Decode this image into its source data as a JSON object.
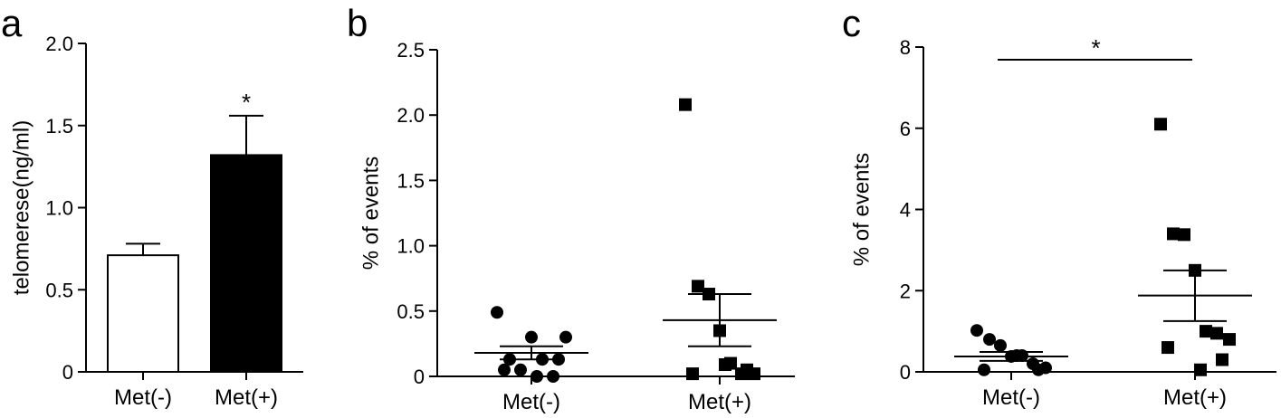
{
  "chart_data": [
    {
      "panel": "a",
      "type": "bar",
      "categories": [
        "Met(-)",
        "Met(+)"
      ],
      "values": [
        0.71,
        1.32
      ],
      "errors": [
        0.07,
        0.24
      ],
      "colors": [
        "#ffffff",
        "#000000"
      ],
      "ylabel": "telomerese(ng/ml)",
      "xlabel": "",
      "title": "",
      "ylim": [
        0,
        2.0
      ],
      "yticks": [
        "0",
        "0.5",
        "1.0",
        "1.5",
        "2.0"
      ],
      "significance": "*"
    },
    {
      "panel": "b",
      "type": "scatter",
      "categories": [
        "Met(-)",
        "Met(+)"
      ],
      "ylabel": "% of events",
      "xlabel": "",
      "title": "",
      "ylim": [
        0,
        2.5
      ],
      "yticks": [
        "0",
        "0.5",
        "1.0",
        "1.5",
        "2.0",
        "2.5"
      ],
      "series": [
        {
          "category": "Met(-)",
          "marker": "circle",
          "values": [
            0.49,
            0.13,
            0.05,
            0.3,
            0.13,
            0.0,
            0.3,
            0.05,
            0.13,
            0.0
          ],
          "mean": 0.18,
          "sem_low": 0.13,
          "sem_high": 0.23
        },
        {
          "category": "Met(+)",
          "marker": "square",
          "values": [
            2.08,
            0.69,
            0.63,
            0.35,
            0.1,
            0.02,
            0.02,
            0.02,
            0.05,
            0.09
          ],
          "mean": 0.43,
          "sem_low": 0.23,
          "sem_high": 0.63
        }
      ],
      "significance": ""
    },
    {
      "panel": "c",
      "type": "scatter",
      "categories": [
        "Met(-)",
        "Met(+)"
      ],
      "ylabel": "% of events",
      "xlabel": "",
      "title": "",
      "ylim": [
        0,
        8
      ],
      "yticks": [
        "0",
        "2",
        "4",
        "6",
        "8"
      ],
      "series": [
        {
          "category": "Met(-)",
          "marker": "circle",
          "values": [
            1.02,
            0.8,
            0.65,
            0.38,
            0.4,
            0.2,
            0.1,
            0.05,
            0.05,
            0.4
          ],
          "mean": 0.38,
          "sem_low": 0.27,
          "sem_high": 0.49
        },
        {
          "category": "Met(+)",
          "marker": "square",
          "values": [
            6.1,
            3.4,
            3.38,
            2.5,
            1.0,
            0.95,
            0.8,
            0.6,
            0.3,
            0.05
          ],
          "mean": 1.88,
          "sem_low": 1.25,
          "sem_high": 2.5
        }
      ],
      "significance": "*"
    }
  ]
}
